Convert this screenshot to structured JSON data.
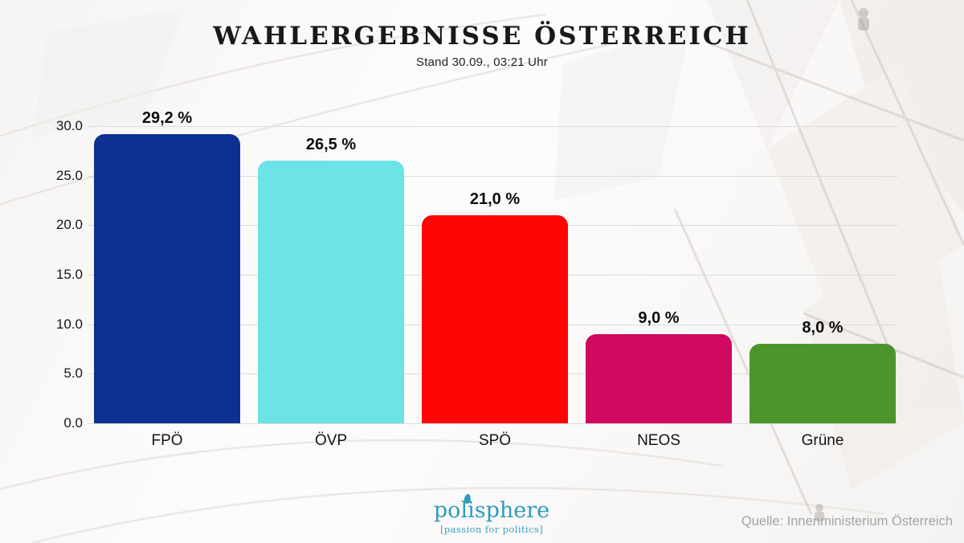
{
  "header": {
    "title": "WAHLERGEBNISSE ÖSTERREICH",
    "subtitle": "Stand 30.09., 03:21 Uhr"
  },
  "chart_data": {
    "type": "bar",
    "title": "WAHLERGEBNISSE ÖSTERREICH",
    "subtitle": "Stand 30.09., 03:21 Uhr",
    "categories": [
      "FPÖ",
      "ÖVP",
      "SPÖ",
      "NEOS",
      "Grüne"
    ],
    "values": [
      29.2,
      26.5,
      21.0,
      9.0,
      8.0
    ],
    "value_labels": [
      "29,2 %",
      "26,5 %",
      "21,0 %",
      "9,0 %",
      "8,0 %"
    ],
    "bar_colors": [
      "#0d3092",
      "#6ce3e6",
      "#fc0505",
      "#cf0a60",
      "#4a962d"
    ],
    "xlabel": "",
    "ylabel": "",
    "ylim": [
      0,
      30
    ],
    "yticks": [
      0,
      5,
      10,
      15,
      20,
      25,
      30
    ],
    "ytick_labels": [
      "0.0",
      "5.0",
      "10.0",
      "15.0",
      "20.0",
      "25.0",
      "30.0"
    ],
    "grid": true,
    "grid_color": "#dcdcda",
    "legend": false
  },
  "footer": {
    "logo_text": "polisphere",
    "logo_tagline": "[passion for politics]",
    "logo_color": "#2d9cbc",
    "source": "Quelle: Innenministerium Österreich"
  }
}
